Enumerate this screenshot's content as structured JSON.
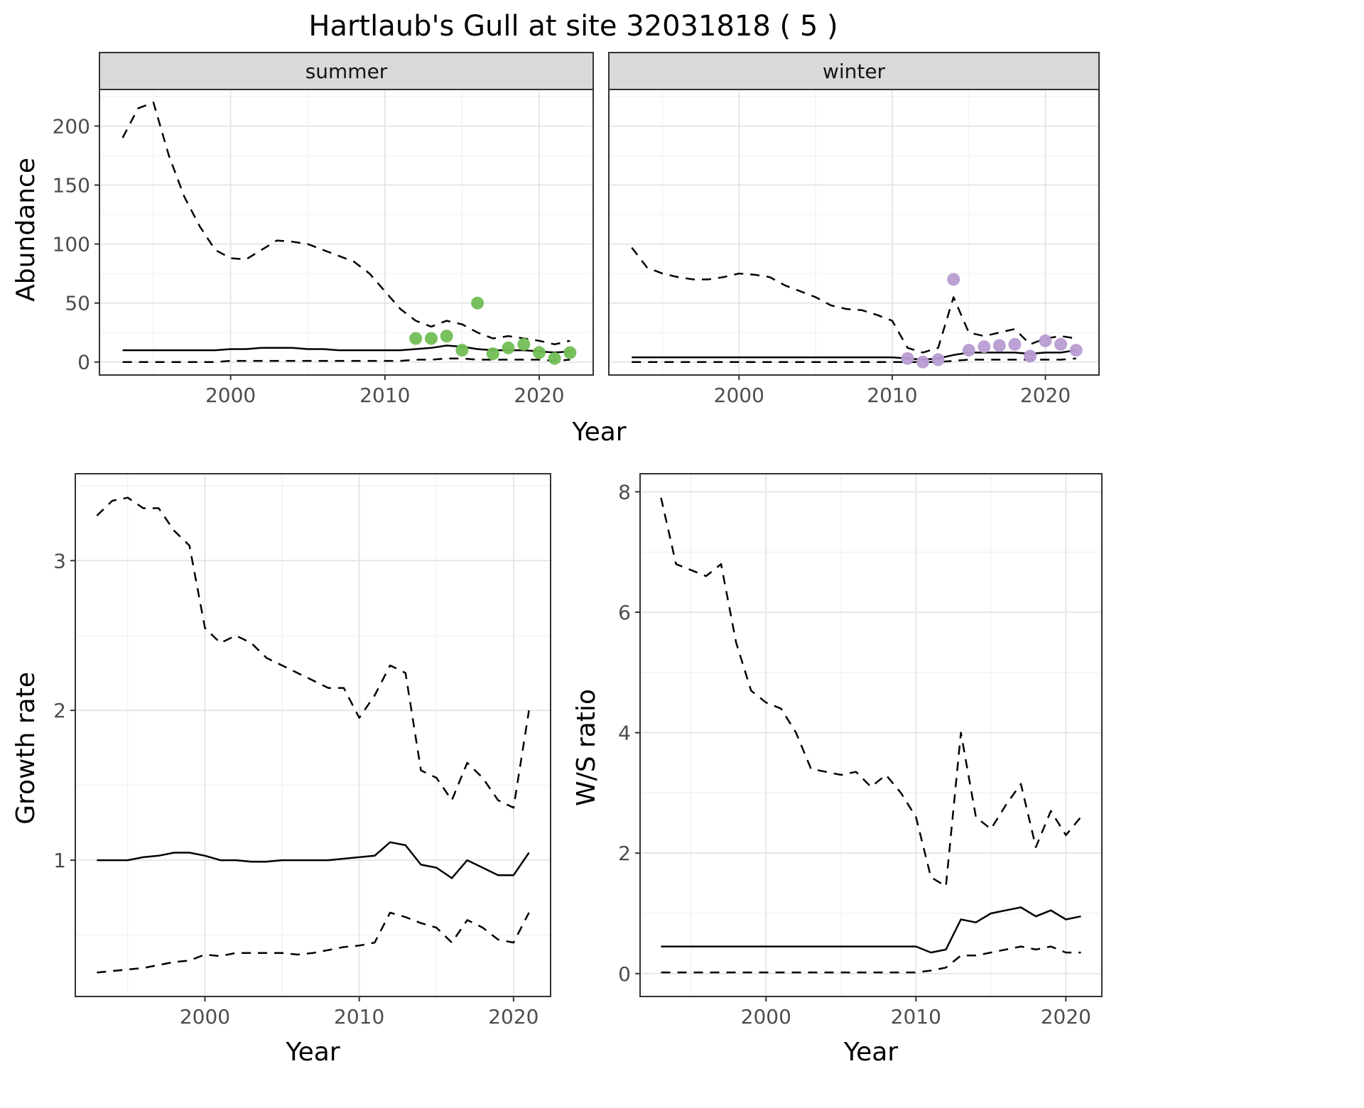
{
  "title": "Hartlaub's Gull at site 32031818 ( 5 )",
  "labels": {
    "abundance": "Abundance",
    "year": "Year",
    "growth_rate": "Growth rate",
    "ws_ratio": "W/S ratio"
  },
  "colors": {
    "background": "#FFFFFF",
    "line": "#000000",
    "summer_points": "#72BE55",
    "winter_points": "#B79CD2",
    "strip_bg": "#D9D9D9",
    "panel_border": "#333333",
    "grid_major": "#E4E4E4",
    "grid_minor": "#F0F0F0",
    "tick_text": "#4D4D4D"
  },
  "chart_data": [
    {
      "type": "line",
      "name": "abundance-summer",
      "facet": "summer",
      "title": "Hartlaub's Gull at site 32031818 ( 5 )",
      "xlabel": "Year",
      "ylabel": "Abundance",
      "xlim": [
        1991.5,
        2023.5
      ],
      "ylim": [
        -11,
        231
      ],
      "xticks": [
        2000,
        2010,
        2020
      ],
      "yticks": [
        0,
        50,
        100,
        150,
        200
      ],
      "show_yticklabels": true,
      "grid": true,
      "x": [
        1993,
        1994,
        1995,
        1996,
        1997,
        1998,
        1999,
        2000,
        2001,
        2002,
        2003,
        2004,
        2005,
        2006,
        2007,
        2008,
        2009,
        2010,
        2011,
        2012,
        2013,
        2014,
        2015,
        2016,
        2017,
        2018,
        2019,
        2020,
        2021,
        2022
      ],
      "series": [
        {
          "name": "upper-ci",
          "style": "dashed",
          "values": [
            190,
            215,
            220,
            175,
            140,
            115,
            95,
            88,
            87,
            95,
            103,
            102,
            100,
            95,
            90,
            85,
            75,
            60,
            45,
            35,
            30,
            35,
            32,
            25,
            20,
            22,
            20,
            18,
            15,
            18
          ]
        },
        {
          "name": "median",
          "style": "solid",
          "values": [
            10,
            10,
            10,
            10,
            10,
            10,
            10,
            11,
            11,
            12,
            12,
            12,
            11,
            11,
            10,
            10,
            10,
            10,
            10,
            11,
            12,
            14,
            13,
            11,
            10,
            10,
            10,
            9,
            8,
            9
          ]
        },
        {
          "name": "lower-ci",
          "style": "dashed",
          "values": [
            0,
            0,
            0,
            0,
            0,
            0,
            0,
            1,
            1,
            1,
            1,
            1,
            1,
            1,
            1,
            1,
            1,
            1,
            1,
            2,
            2,
            3,
            3,
            2,
            2,
            2,
            2,
            2,
            1,
            2
          ]
        }
      ],
      "points": {
        "name": "observed-count-summer",
        "color": "#72BE55",
        "x": [
          2012,
          2013,
          2014,
          2015,
          2016,
          2017,
          2018,
          2019,
          2020,
          2021,
          2022
        ],
        "y": [
          20,
          20,
          22,
          10,
          50,
          7,
          12,
          15,
          8,
          3,
          8
        ]
      }
    },
    {
      "type": "line",
      "name": "abundance-winter",
      "facet": "winter",
      "xlabel": "Year",
      "ylabel": "Abundance",
      "xlim": [
        1991.5,
        2023.5
      ],
      "ylim": [
        -11,
        231
      ],
      "xticks": [
        2000,
        2010,
        2020
      ],
      "yticks": [
        0,
        50,
        100,
        150,
        200
      ],
      "show_yticklabels": false,
      "grid": true,
      "x": [
        1993,
        1994,
        1995,
        1996,
        1997,
        1998,
        1999,
        2000,
        2001,
        2002,
        2003,
        2004,
        2005,
        2006,
        2007,
        2008,
        2009,
        2010,
        2011,
        2012,
        2013,
        2014,
        2015,
        2016,
        2017,
        2018,
        2019,
        2020,
        2021,
        2022
      ],
      "series": [
        {
          "name": "upper-ci",
          "style": "dashed",
          "values": [
            97,
            80,
            75,
            72,
            70,
            70,
            72,
            75,
            74,
            72,
            65,
            60,
            55,
            48,
            45,
            44,
            40,
            35,
            12,
            8,
            12,
            55,
            25,
            22,
            25,
            28,
            15,
            20,
            22,
            20
          ]
        },
        {
          "name": "median",
          "style": "solid",
          "values": [
            4,
            4,
            4,
            4,
            4,
            4,
            4,
            4,
            4,
            4,
            4,
            4,
            4,
            4,
            4,
            4,
            4,
            4,
            3,
            2,
            3,
            6,
            8,
            8,
            8,
            8,
            7,
            8,
            8,
            10
          ]
        },
        {
          "name": "lower-ci",
          "style": "dashed",
          "values": [
            0,
            0,
            0,
            0,
            0,
            0,
            0,
            0,
            0,
            0,
            0,
            0,
            0,
            0,
            0,
            0,
            0,
            0,
            0,
            0,
            0,
            1,
            2,
            2,
            2,
            2,
            2,
            2,
            2,
            3
          ]
        }
      ],
      "points": {
        "name": "observed-count-winter",
        "color": "#B79CD2",
        "x": [
          2011,
          2012,
          2013,
          2014,
          2015,
          2016,
          2017,
          2018,
          2019,
          2020,
          2021,
          2022
        ],
        "y": [
          3,
          0,
          2,
          70,
          10,
          13,
          14,
          15,
          5,
          18,
          15,
          10
        ]
      }
    },
    {
      "type": "line",
      "name": "growth-rate",
      "facet": null,
      "xlabel": "Year",
      "ylabel": "Growth rate",
      "xlim": [
        1991.6,
        2022.4
      ],
      "ylim": [
        0.09,
        3.58
      ],
      "xticks": [
        2000,
        2010,
        2020
      ],
      "yticks": [
        1,
        2,
        3
      ],
      "show_yticklabels": true,
      "grid": true,
      "x": [
        1993,
        1994,
        1995,
        1996,
        1997,
        1998,
        1999,
        2000,
        2001,
        2002,
        2003,
        2004,
        2005,
        2006,
        2007,
        2008,
        2009,
        2010,
        2011,
        2012,
        2013,
        2014,
        2015,
        2016,
        2017,
        2018,
        2019,
        2020,
        2021
      ],
      "series": [
        {
          "name": "upper-ci",
          "style": "dashed",
          "values": [
            3.3,
            3.4,
            3.42,
            3.35,
            3.35,
            3.2,
            3.1,
            2.55,
            2.45,
            2.5,
            2.45,
            2.35,
            2.3,
            2.25,
            2.2,
            2.15,
            2.15,
            1.95,
            2.1,
            2.3,
            2.25,
            1.6,
            1.55,
            1.4,
            1.65,
            1.55,
            1.4,
            1.35,
            2.0
          ]
        },
        {
          "name": "median",
          "style": "solid",
          "values": [
            1.0,
            1.0,
            1.0,
            1.02,
            1.03,
            1.05,
            1.05,
            1.03,
            1.0,
            1.0,
            0.99,
            0.99,
            1.0,
            1.0,
            1.0,
            1.0,
            1.01,
            1.02,
            1.03,
            1.12,
            1.1,
            0.97,
            0.95,
            0.88,
            1.0,
            0.95,
            0.9,
            0.9,
            1.05
          ]
        },
        {
          "name": "lower-ci",
          "style": "dashed",
          "values": [
            0.25,
            0.26,
            0.27,
            0.28,
            0.3,
            0.32,
            0.33,
            0.37,
            0.36,
            0.38,
            0.38,
            0.38,
            0.38,
            0.37,
            0.38,
            0.4,
            0.42,
            0.43,
            0.45,
            0.65,
            0.62,
            0.58,
            0.55,
            0.45,
            0.6,
            0.55,
            0.47,
            0.45,
            0.65
          ]
        }
      ],
      "points": null
    },
    {
      "type": "line",
      "name": "ws-ratio",
      "facet": null,
      "xlabel": "Year",
      "ylabel": "W/S ratio",
      "xlim": [
        1991.6,
        2022.4
      ],
      "ylim": [
        -0.38,
        8.3
      ],
      "xticks": [
        2000,
        2010,
        2020
      ],
      "yticks": [
        0,
        2,
        4,
        6,
        8
      ],
      "show_yticklabels": true,
      "grid": true,
      "x": [
        1993,
        1994,
        1995,
        1996,
        1997,
        1998,
        1999,
        2000,
        2001,
        2002,
        2003,
        2004,
        2005,
        2006,
        2007,
        2008,
        2009,
        2010,
        2011,
        2012,
        2013,
        2014,
        2015,
        2016,
        2017,
        2018,
        2019,
        2020,
        2021
      ],
      "series": [
        {
          "name": "upper-ci",
          "style": "dashed",
          "values": [
            7.9,
            6.8,
            6.7,
            6.6,
            6.8,
            5.5,
            4.7,
            4.5,
            4.4,
            4.0,
            3.4,
            3.35,
            3.3,
            3.35,
            3.1,
            3.3,
            3.0,
            2.6,
            1.6,
            1.45,
            4.0,
            2.6,
            2.4,
            2.8,
            3.15,
            2.1,
            2.7,
            2.3,
            2.6
          ]
        },
        {
          "name": "median",
          "style": "solid",
          "values": [
            0.45,
            0.45,
            0.45,
            0.45,
            0.45,
            0.45,
            0.45,
            0.45,
            0.45,
            0.45,
            0.45,
            0.45,
            0.45,
            0.45,
            0.45,
            0.45,
            0.45,
            0.45,
            0.35,
            0.4,
            0.9,
            0.85,
            1.0,
            1.05,
            1.1,
            0.95,
            1.05,
            0.9,
            0.95
          ]
        },
        {
          "name": "lower-ci",
          "style": "dashed",
          "values": [
            0.02,
            0.02,
            0.02,
            0.02,
            0.02,
            0.02,
            0.02,
            0.02,
            0.02,
            0.02,
            0.02,
            0.02,
            0.02,
            0.02,
            0.02,
            0.02,
            0.02,
            0.02,
            0.05,
            0.1,
            0.3,
            0.3,
            0.35,
            0.4,
            0.45,
            0.4,
            0.45,
            0.35,
            0.35
          ]
        }
      ],
      "points": null
    }
  ]
}
